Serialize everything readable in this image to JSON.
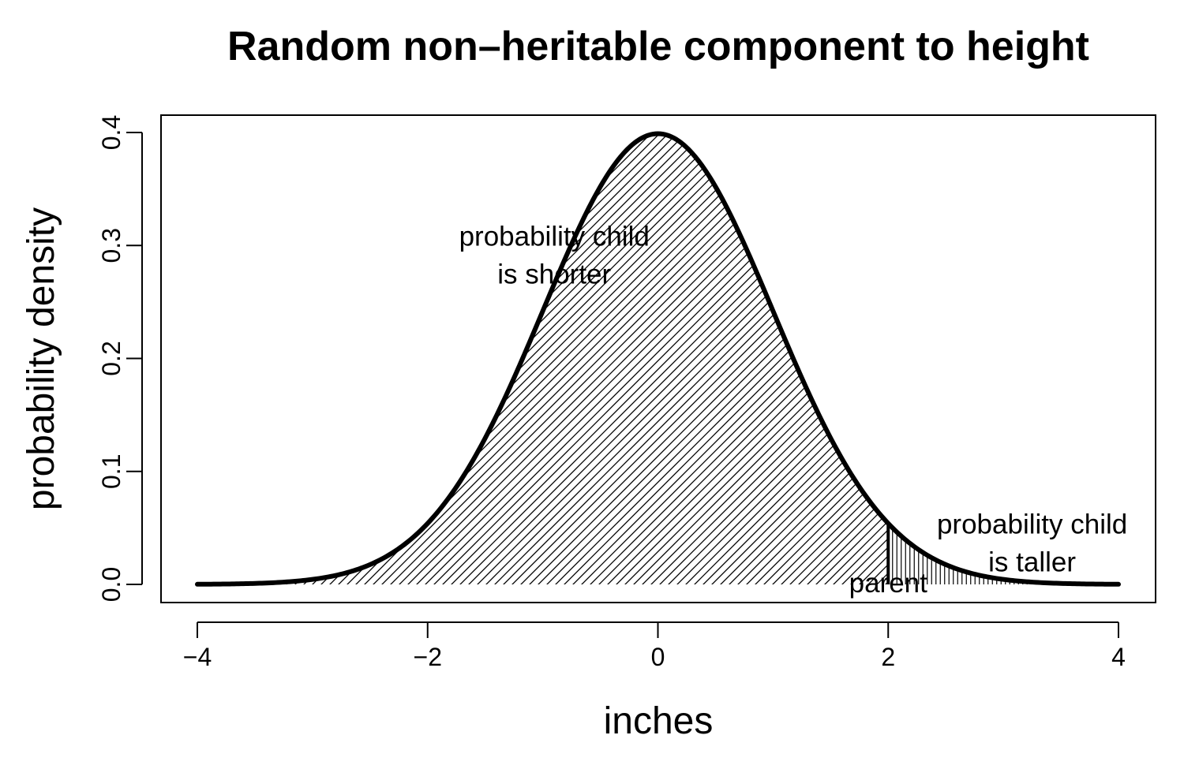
{
  "chart_data": {
    "type": "area",
    "title": "Random non–heritable component to height",
    "xlabel": "inches",
    "ylabel": "probability density",
    "xlim": [
      -4,
      4
    ],
    "ylim": [
      0,
      0.4
    ],
    "x_ticks": [
      -4,
      -2,
      0,
      2,
      4
    ],
    "x_tick_labels": [
      "−4",
      "−2",
      "0",
      "2",
      "4"
    ],
    "y_ticks": [
      0.0,
      0.1,
      0.2,
      0.3,
      0.4
    ],
    "y_tick_labels": [
      "0.0",
      "0.1",
      "0.2",
      "0.3",
      "0.4"
    ],
    "grid": false,
    "legend": "none",
    "curve": {
      "distribution": "normal",
      "mean": 0,
      "sd": 1,
      "range": [
        -4,
        4
      ],
      "color": "#000000"
    },
    "threshold": 2,
    "regions": [
      {
        "range": [
          -4,
          2
        ],
        "fill": "diagonal-hatch"
      },
      {
        "range": [
          2,
          4
        ],
        "fill": "vertical-hatch"
      }
    ],
    "annotations": [
      {
        "id": "shorter",
        "lines": [
          "probability child",
          "is shorter"
        ],
        "x": -0.9,
        "y": 0.3
      },
      {
        "id": "taller",
        "lines": [
          "probability child",
          "is taller"
        ],
        "x": 3.25,
        "y": 0.045
      },
      {
        "id": "parent",
        "lines": [
          "parent"
        ],
        "x": 2.0,
        "y": -0.007
      }
    ]
  }
}
